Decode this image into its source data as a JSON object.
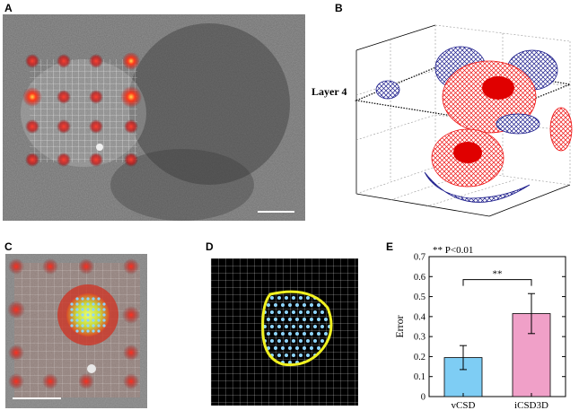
{
  "panels": {
    "a": {
      "letter": "A"
    },
    "b": {
      "letter": "B",
      "layer_label": "Layer 4"
    },
    "c": {
      "letter": "C"
    },
    "d": {
      "letter": "D"
    },
    "e": {
      "letter": "E"
    }
  },
  "chart_data": {
    "type": "bar",
    "legend_note": "** P<0.01",
    "significance": "**",
    "categories": [
      "vCSD",
      "iCSD3D"
    ],
    "values": [
      0.195,
      0.415
    ],
    "errors": [
      0.06,
      0.1
    ],
    "colors": [
      "#7ecdf4",
      "#f0a0c8"
    ],
    "ylabel": "Error",
    "xlabel": "",
    "ylim": [
      0,
      0.7
    ],
    "yticks": [
      "0",
      "0.1",
      "0.2",
      "0.3",
      "0.4",
      "0.5",
      "0.6",
      "0.7"
    ]
  }
}
